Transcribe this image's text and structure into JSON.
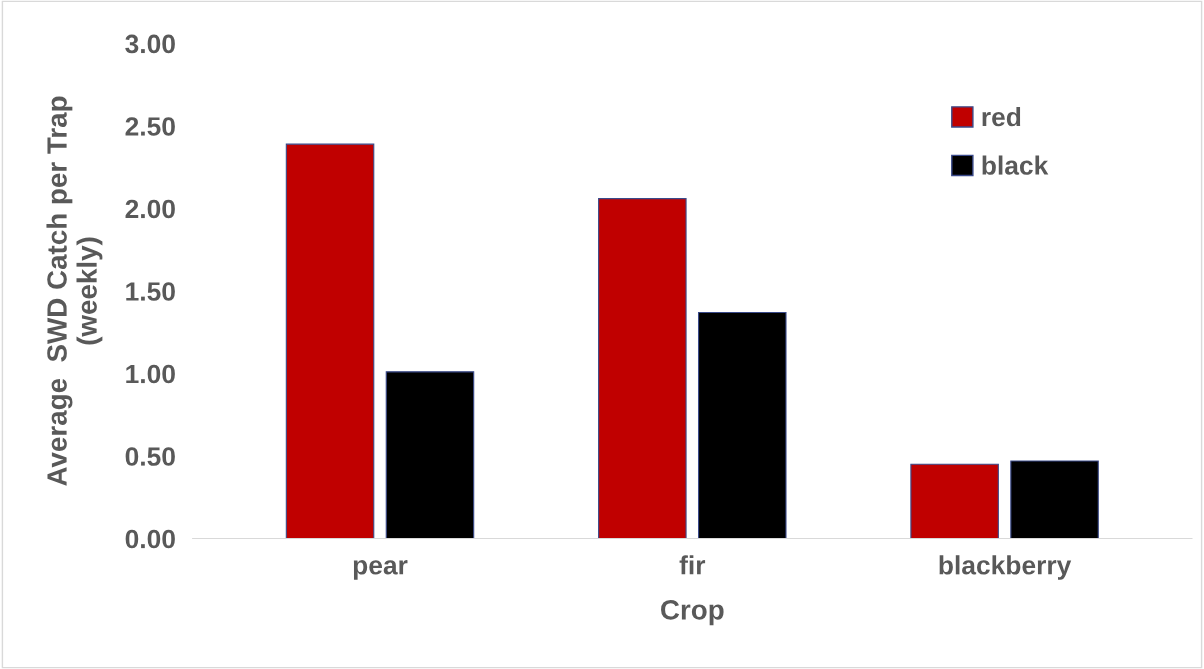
{
  "chart_data": {
    "type": "bar",
    "xlabel": "Crop",
    "ylabel": "Average  SWD Catch per Trap\n(weekly)",
    "categories": [
      "pear",
      "fir",
      "blackberry"
    ],
    "series": [
      {
        "name": "red",
        "color": "#c00000",
        "values": [
          2.39,
          2.06,
          0.45
        ]
      },
      {
        "name": "black",
        "color": "#000000",
        "values": [
          1.01,
          1.37,
          0.47
        ]
      }
    ],
    "ylim": [
      0,
      3
    ],
    "yticks": [
      {
        "value": 0,
        "label": "0.00"
      },
      {
        "value": 0.5,
        "label": "0.50"
      },
      {
        "value": 1,
        "label": "1.00"
      },
      {
        "value": 1.5,
        "label": "1.50"
      },
      {
        "value": 2,
        "label": "2.00"
      },
      {
        "value": 2.5,
        "label": "2.50"
      },
      {
        "value": 3,
        "label": "3.00"
      }
    ],
    "grid": false,
    "legend": "top right"
  }
}
